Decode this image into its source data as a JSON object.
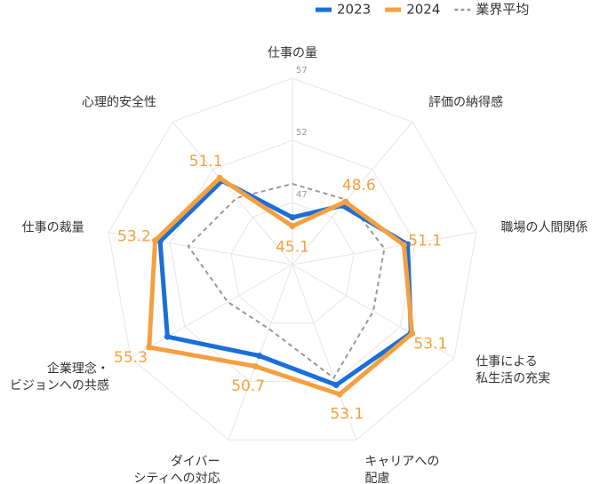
{
  "chart_data": {
    "type": "radar",
    "categories": [
      "仕事の量",
      "評価の納得感",
      "職場の人間関係",
      "仕事による\n私生活の充実",
      "キャリアへの\n配慮",
      "ダイバー\nシティへの対応",
      "企業理念・\nビジョンへの共感",
      "仕事の裁量",
      "心理的安全性"
    ],
    "series": [
      {
        "name": "2023",
        "color": "#1a6fd9",
        "values": [
          45.8,
          48.2,
          51.4,
          53.0,
          52.3,
          49.8,
          53.6,
          52.8,
          50.8
        ]
      },
      {
        "name": "2024",
        "color": "#f5a040",
        "values": [
          45.1,
          48.6,
          51.1,
          53.1,
          53.1,
          50.7,
          55.3,
          53.2,
          51.1
        ]
      },
      {
        "name": "業界平均",
        "color": "#999999",
        "dashed": true,
        "values": [
          48.5,
          48.8,
          49.5,
          49.5,
          51.7,
          47.5,
          48.0,
          50.5,
          49.0
        ]
      }
    ],
    "labeled_series": 1,
    "ylim": [
      42,
      57
    ],
    "yticks": [
      47,
      52,
      57
    ],
    "grid": true,
    "legend": "top-right"
  }
}
